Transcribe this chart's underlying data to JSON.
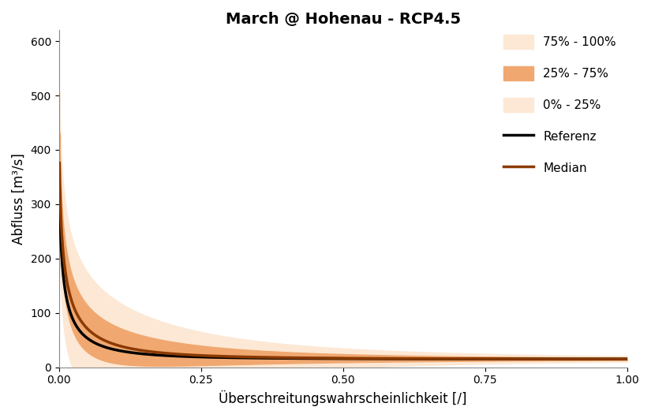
{
  "title": "March @ Hohenau - RCP4.5",
  "xlabel": "Überschreitungswahrscheinlichkeit [/]",
  "ylabel": "Abfluss [m³/s]",
  "xlim": [
    0,
    1.0
  ],
  "ylim": [
    0,
    620
  ],
  "yticks": [
    0,
    100,
    200,
    300,
    400,
    500,
    600
  ],
  "xticks": [
    0,
    0.25,
    0.5,
    0.75,
    1.0
  ],
  "color_band_outer": "#fce8d5",
  "color_band_middle": "#f0a870",
  "color_median": "#8B3A00",
  "color_reference": "#000000",
  "figsize": [
    8.25,
    5.3
  ],
  "dpi": 100
}
